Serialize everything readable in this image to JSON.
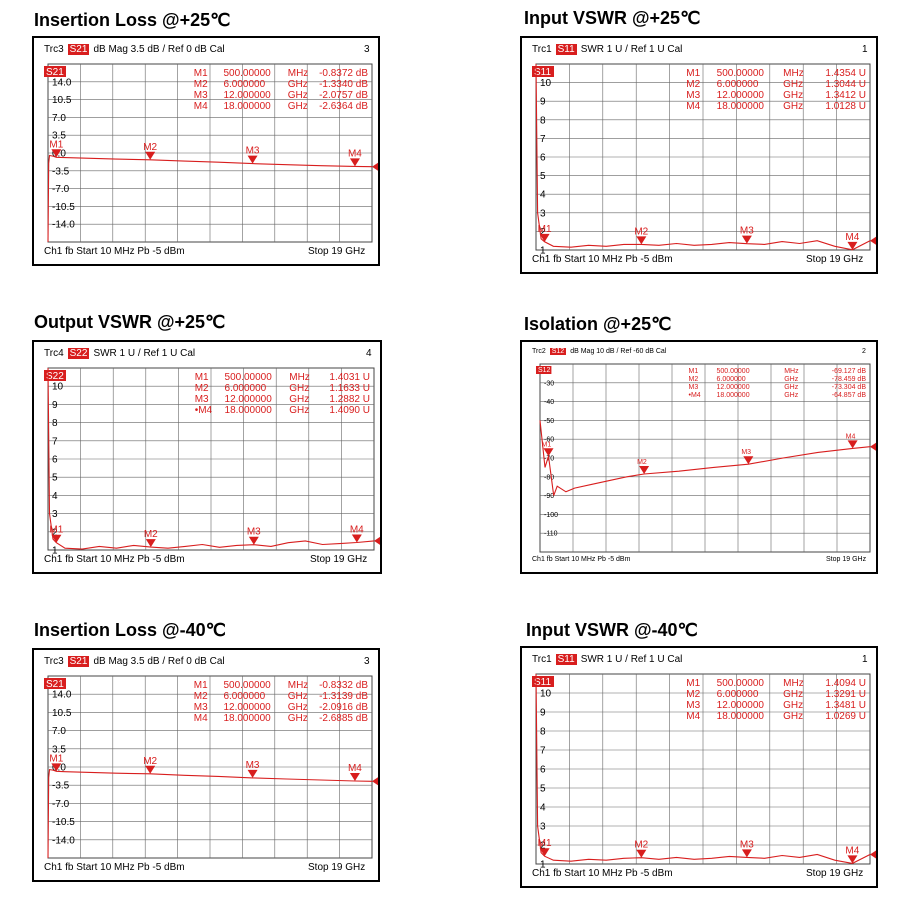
{
  "chart_data": [
    {
      "id": "il25",
      "type": "line",
      "title": "Insertion Loss @+25℃",
      "header": {
        "trace": "Trc3",
        "param": "S21",
        "format": "dB Mag",
        "scale": "3.5 dB /",
        "ref": "Ref 0 dB",
        "cal": "Cal",
        "index": "3"
      },
      "footer": {
        "channel": "Ch1",
        "mode": "fb",
        "start": "Start 10 MHz",
        "power": "Pb",
        "power_val": "-5 dBm",
        "stop": "Stop 19 GHz"
      },
      "ylim": [
        -17.5,
        17.5
      ],
      "ytick_labels": [
        "14.0",
        "10.5",
        "7.0",
        "3.5",
        "0.0",
        "-3.5",
        "-7.0",
        "-10.5",
        "-14.0"
      ],
      "ytick_values": [
        14,
        10.5,
        7,
        3.5,
        0,
        -3.5,
        -7,
        -10.5,
        -14
      ],
      "xlim": [
        0.01,
        19
      ],
      "markers": [
        {
          "name": "M1",
          "x_label": "500.00000",
          "unit": "MHz",
          "value": "-0.8372 dB",
          "x": 0.5,
          "y": -0.84
        },
        {
          "name": "M2",
          "x_label": "6.000000",
          "unit": "GHz",
          "value": "-1.3340 dB",
          "x": 6,
          "y": -1.33
        },
        {
          "name": "M3",
          "x_label": "12.000000",
          "unit": "GHz",
          "value": "-2.0757 dB",
          "x": 12,
          "y": -2.08
        },
        {
          "name": "M4",
          "x_label": "18.000000",
          "unit": "GHz",
          "value": "-2.6364 dB",
          "x": 18,
          "y": -2.64
        }
      ],
      "series": [
        {
          "x": [
            0.01,
            0.05,
            0.1,
            0.3,
            0.5,
            1,
            2,
            4,
            6,
            8,
            10,
            12,
            14,
            16,
            18,
            19
          ],
          "y": [
            -17.5,
            -2,
            -0.5,
            -0.6,
            -0.84,
            -0.9,
            -1.0,
            -1.2,
            -1.33,
            -1.6,
            -1.8,
            -2.08,
            -2.3,
            -2.5,
            -2.64,
            -2.7
          ]
        }
      ]
    },
    {
      "id": "vin25",
      "type": "line",
      "title": "Input VSWR @+25℃",
      "header": {
        "trace": "Trc1",
        "param": "S11",
        "format": "SWR",
        "scale": "1 U /",
        "ref": "Ref 1 U",
        "cal": "Cal",
        "index": "1"
      },
      "footer": {
        "channel": "Ch1",
        "mode": "fb",
        "start": "Start 10 MHz",
        "power": "Pb",
        "power_val": "-5 dBm",
        "stop": "Stop 19 GHz"
      },
      "ylim": [
        1,
        11
      ],
      "ytick_labels": [
        "10",
        "9",
        "8",
        "7",
        "6",
        "5",
        "4",
        "3",
        "2",
        "1"
      ],
      "ytick_values": [
        10,
        9,
        8,
        7,
        6,
        5,
        4,
        3,
        2,
        1
      ],
      "xlim": [
        0.01,
        19
      ],
      "markers": [
        {
          "name": "M1",
          "x_label": "500.00000",
          "unit": "MHz",
          "value": "1.4354 U",
          "x": 0.5,
          "y": 1.44
        },
        {
          "name": "M2",
          "x_label": "6.000000",
          "unit": "GHz",
          "value": "1.3044 U",
          "x": 6,
          "y": 1.3
        },
        {
          "name": "M3",
          "x_label": "12.000000",
          "unit": "GHz",
          "value": "1.3412 U",
          "x": 12,
          "y": 1.34
        },
        {
          "name": "M4",
          "x_label": "18.000000",
          "unit": "GHz",
          "value": "1.0128 U",
          "x": 18,
          "y": 1.01
        }
      ],
      "series": [
        {
          "x": [
            0.01,
            0.1,
            0.3,
            0.5,
            1,
            2,
            3,
            4,
            5,
            6,
            7,
            8,
            9,
            10,
            11,
            12,
            13,
            14,
            15,
            16,
            17,
            18,
            19
          ],
          "y": [
            11,
            3,
            1.6,
            1.44,
            1.2,
            1.15,
            1.25,
            1.2,
            1.3,
            1.3,
            1.25,
            1.35,
            1.25,
            1.3,
            1.4,
            1.34,
            1.3,
            1.45,
            1.35,
            1.5,
            1.2,
            1.01,
            1.5
          ]
        }
      ]
    },
    {
      "id": "vout25",
      "type": "line",
      "title": "Output VSWR @+25℃",
      "header": {
        "trace": "Trc4",
        "param": "S22",
        "format": "SWR",
        "scale": "1 U /",
        "ref": "Ref 1 U",
        "cal": "Cal",
        "index": "4"
      },
      "footer": {
        "channel": "Ch1",
        "mode": "fb",
        "start": "Start 10 MHz",
        "power": "Pb",
        "power_val": "-5 dBm",
        "stop": "Stop 19 GHz"
      },
      "ylim": [
        1,
        11
      ],
      "ytick_labels": [
        "10",
        "9",
        "8",
        "7",
        "6",
        "5",
        "4",
        "3",
        "2",
        "1"
      ],
      "ytick_values": [
        10,
        9,
        8,
        7,
        6,
        5,
        4,
        3,
        2,
        1
      ],
      "xlim": [
        0.01,
        19
      ],
      "markers": [
        {
          "name": "M1",
          "x_label": "500.00000",
          "unit": "MHz",
          "value": "1.4031 U",
          "x": 0.5,
          "y": 1.4
        },
        {
          "name": "M2",
          "x_label": "6.000000",
          "unit": "GHz",
          "value": "1.1633 U",
          "x": 6,
          "y": 1.16
        },
        {
          "name": "M3",
          "x_label": "12.000000",
          "unit": "GHz",
          "value": "1.2882 U",
          "x": 12,
          "y": 1.29
        },
        {
          "name": "•M4",
          "x_label": "18.000000",
          "unit": "GHz",
          "value": "1.4090 U",
          "x": 18,
          "y": 1.41
        }
      ],
      "series": [
        {
          "x": [
            0.01,
            0.1,
            0.3,
            0.5,
            1,
            2,
            3,
            4,
            5,
            6,
            7,
            8,
            9,
            10,
            11,
            12,
            13,
            14,
            15,
            16,
            17,
            18,
            19
          ],
          "y": [
            11,
            3,
            1.6,
            1.4,
            1.1,
            1.05,
            1.2,
            1.1,
            1.25,
            1.16,
            1.1,
            1.2,
            1.3,
            1.15,
            1.25,
            1.29,
            1.2,
            1.4,
            1.5,
            1.3,
            1.35,
            1.41,
            1.5
          ]
        }
      ]
    },
    {
      "id": "iso25",
      "type": "line",
      "title": "Isolation @+25℃",
      "header": {
        "trace": "Trc2",
        "param": "S12",
        "format": "dB Mag",
        "scale": "10 dB /",
        "ref": "Ref -60 dB",
        "cal": "Cal",
        "index": "2"
      },
      "footer": {
        "channel": "Ch1",
        "mode": "fb",
        "start": "Start 10 MHz",
        "power": "Pb",
        "power_val": "-5 dBm",
        "stop": "Stop 19 GHz"
      },
      "ylim": [
        -120,
        -20
      ],
      "ytick_labels": [
        "-30",
        "-40",
        "-50",
        "-60",
        "-70",
        "-80",
        "-90",
        "-100",
        "-110"
      ],
      "ytick_values": [
        -30,
        -40,
        -50,
        -60,
        -70,
        -80,
        -90,
        -100,
        -110
      ],
      "xlim": [
        0.01,
        19
      ],
      "markers": [
        {
          "name": "M1",
          "x_label": "500.00000",
          "unit": "MHz",
          "value": "-69.127 dB",
          "x": 0.5,
          "y": -69.1
        },
        {
          "name": "M2",
          "x_label": "6.000000",
          "unit": "GHz",
          "value": "-78.459 dB",
          "x": 6,
          "y": -78.5
        },
        {
          "name": "M3",
          "x_label": "12.000000",
          "unit": "GHz",
          "value": "-73.304 dB",
          "x": 12,
          "y": -73.3
        },
        {
          "name": "•M4",
          "x_label": "18.000000",
          "unit": "GHz",
          "value": "-64.857 dB",
          "x": 18,
          "y": -64.9
        }
      ],
      "series": [
        {
          "x": [
            0.01,
            0.1,
            0.3,
            0.5,
            0.8,
            1,
            1.5,
            2,
            3,
            4,
            5,
            6,
            8,
            10,
            12,
            14,
            16,
            18,
            19
          ],
          "y": [
            -50,
            -58,
            -75,
            -69,
            -90,
            -85,
            -88,
            -86,
            -84,
            -82,
            -80,
            -78.5,
            -77,
            -75,
            -73.3,
            -70,
            -67,
            -64.9,
            -64
          ]
        }
      ]
    },
    {
      "id": "il40",
      "type": "line",
      "title": "Insertion Loss @-40℃",
      "header": {
        "trace": "Trc3",
        "param": "S21",
        "format": "dB Mag",
        "scale": "3.5 dB /",
        "ref": "Ref 0 dB",
        "cal": "Cal",
        "index": "3"
      },
      "footer": {
        "channel": "Ch1",
        "mode": "fb",
        "start": "Start 10 MHz",
        "power": "Pb",
        "power_val": "-5 dBm",
        "stop": "Stop 19 GHz"
      },
      "ylim": [
        -17.5,
        17.5
      ],
      "ytick_labels": [
        "14.0",
        "10.5",
        "7.0",
        "3.5",
        "0.0",
        "-3.5",
        "-7.0",
        "-10.5",
        "-14.0"
      ],
      "ytick_values": [
        14,
        10.5,
        7,
        3.5,
        0,
        -3.5,
        -7,
        -10.5,
        -14
      ],
      "xlim": [
        0.01,
        19
      ],
      "markers": [
        {
          "name": "M1",
          "x_label": "500.00000",
          "unit": "MHz",
          "value": "-0.8332 dB",
          "x": 0.5,
          "y": -0.83
        },
        {
          "name": "M2",
          "x_label": "6.000000",
          "unit": "GHz",
          "value": "-1.3139 dB",
          "x": 6,
          "y": -1.31
        },
        {
          "name": "M3",
          "x_label": "12.000000",
          "unit": "GHz",
          "value": "-2.0916 dB",
          "x": 12,
          "y": -2.09
        },
        {
          "name": "M4",
          "x_label": "18.000000",
          "unit": "GHz",
          "value": "-2.6885 dB",
          "x": 18,
          "y": -2.69
        }
      ],
      "series": [
        {
          "x": [
            0.01,
            0.05,
            0.1,
            0.3,
            0.5,
            1,
            2,
            4,
            6,
            8,
            10,
            12,
            14,
            16,
            18,
            19
          ],
          "y": [
            -17.5,
            -2,
            -0.5,
            -0.6,
            -0.83,
            -0.9,
            -1.0,
            -1.2,
            -1.31,
            -1.6,
            -1.8,
            -2.09,
            -2.3,
            -2.5,
            -2.69,
            -2.75
          ]
        }
      ]
    },
    {
      "id": "vin40",
      "type": "line",
      "title": "Input VSWR @-40℃",
      "header": {
        "trace": "Trc1",
        "param": "S11",
        "format": "SWR",
        "scale": "1 U /",
        "ref": "Ref 1 U",
        "cal": "Cal",
        "index": "1"
      },
      "footer": {
        "channel": "Ch1",
        "mode": "fb",
        "start": "Start 10 MHz",
        "power": "Pb",
        "power_val": "-5 dBm",
        "stop": "Stop 19 GHz"
      },
      "ylim": [
        1,
        11
      ],
      "ytick_labels": [
        "10",
        "9",
        "8",
        "7",
        "6",
        "5",
        "4",
        "3",
        "2",
        "1"
      ],
      "ytick_values": [
        10,
        9,
        8,
        7,
        6,
        5,
        4,
        3,
        2,
        1
      ],
      "xlim": [
        0.01,
        19
      ],
      "markers": [
        {
          "name": "M1",
          "x_label": "500.00000",
          "unit": "MHz",
          "value": "1.4094 U",
          "x": 0.5,
          "y": 1.41
        },
        {
          "name": "M2",
          "x_label": "6.000000",
          "unit": "GHz",
          "value": "1.3291 U",
          "x": 6,
          "y": 1.33
        },
        {
          "name": "M3",
          "x_label": "12.000000",
          "unit": "GHz",
          "value": "1.3481 U",
          "x": 12,
          "y": 1.35
        },
        {
          "name": "M4",
          "x_label": "18.000000",
          "unit": "GHz",
          "value": "1.0269 U",
          "x": 18,
          "y": 1.03
        }
      ],
      "series": [
        {
          "x": [
            0.01,
            0.1,
            0.3,
            0.5,
            1,
            2,
            3,
            4,
            5,
            6,
            7,
            8,
            9,
            10,
            11,
            12,
            13,
            14,
            15,
            16,
            17,
            18,
            19
          ],
          "y": [
            11,
            3,
            1.6,
            1.41,
            1.2,
            1.15,
            1.25,
            1.2,
            1.3,
            1.33,
            1.25,
            1.35,
            1.25,
            1.3,
            1.4,
            1.35,
            1.3,
            1.45,
            1.35,
            1.5,
            1.2,
            1.03,
            1.5
          ]
        }
      ]
    }
  ]
}
